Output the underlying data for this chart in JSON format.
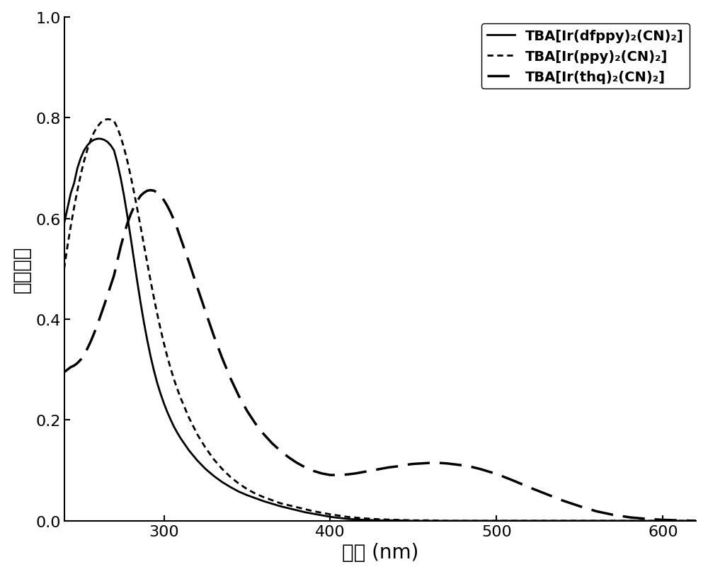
{
  "title": "",
  "xlabel": "波长 (nm)",
  "ylabel": "吸收强度",
  "xlim": [
    240,
    620
  ],
  "ylim": [
    0.0,
    1.0
  ],
  "xticks": [
    300,
    400,
    500,
    600
  ],
  "yticks": [
    0.0,
    0.2,
    0.4,
    0.6,
    0.8,
    1.0
  ],
  "legend_labels": [
    "TBA[Ir(dfppy)₂(CN)₂]",
    "TBA[Ir(ppy)₂(CN)₂]",
    "TBA[Ir(thq)₂(CN)₂]"
  ],
  "line_colors": [
    "#000000",
    "#000000",
    "#000000"
  ],
  "background_color": "#ffffff",
  "curve1_x": [
    240,
    242,
    244,
    246,
    248,
    250,
    252,
    254,
    256,
    258,
    260,
    262,
    264,
    266,
    268,
    270,
    272,
    274,
    276,
    278,
    280,
    282,
    284,
    286,
    288,
    290,
    292,
    294,
    296,
    298,
    300,
    302,
    304,
    306,
    308,
    310,
    315,
    320,
    325,
    330,
    335,
    340,
    345,
    350,
    355,
    360,
    365,
    370,
    375,
    380,
    385,
    390,
    395,
    400,
    410,
    420,
    430,
    440,
    450,
    460,
    470,
    480,
    490,
    500,
    520,
    540,
    560,
    580,
    600,
    620
  ],
  "curve1_y": [
    0.59,
    0.62,
    0.65,
    0.67,
    0.7,
    0.72,
    0.735,
    0.745,
    0.752,
    0.756,
    0.758,
    0.758,
    0.756,
    0.752,
    0.745,
    0.735,
    0.71,
    0.68,
    0.645,
    0.605,
    0.562,
    0.518,
    0.474,
    0.432,
    0.393,
    0.358,
    0.326,
    0.298,
    0.273,
    0.252,
    0.233,
    0.216,
    0.201,
    0.187,
    0.175,
    0.164,
    0.14,
    0.12,
    0.103,
    0.089,
    0.077,
    0.067,
    0.058,
    0.051,
    0.045,
    0.039,
    0.034,
    0.029,
    0.025,
    0.021,
    0.017,
    0.014,
    0.011,
    0.008,
    0.004,
    0.002,
    0.001,
    0.001,
    0.0,
    0.0,
    0.0,
    0.0,
    0.0,
    0.0,
    0.0,
    0.0,
    0.0,
    0.0,
    0.0,
    0.0
  ],
  "curve2_x": [
    240,
    242,
    244,
    246,
    248,
    250,
    252,
    254,
    256,
    258,
    260,
    262,
    264,
    266,
    268,
    270,
    272,
    274,
    276,
    278,
    280,
    282,
    284,
    286,
    288,
    290,
    292,
    294,
    296,
    298,
    300,
    302,
    304,
    306,
    308,
    310,
    315,
    320,
    325,
    330,
    335,
    340,
    345,
    350,
    355,
    360,
    365,
    370,
    375,
    380,
    385,
    390,
    395,
    400,
    410,
    420,
    430,
    440,
    450,
    460,
    470,
    480,
    490,
    500,
    520,
    540,
    560,
    580,
    600,
    620
  ],
  "curve2_y": [
    0.5,
    0.545,
    0.585,
    0.622,
    0.656,
    0.687,
    0.714,
    0.737,
    0.756,
    0.771,
    0.782,
    0.79,
    0.795,
    0.797,
    0.796,
    0.793,
    0.78,
    0.762,
    0.74,
    0.714,
    0.684,
    0.652,
    0.618,
    0.583,
    0.547,
    0.511,
    0.476,
    0.442,
    0.41,
    0.38,
    0.352,
    0.326,
    0.303,
    0.281,
    0.262,
    0.244,
    0.205,
    0.172,
    0.145,
    0.122,
    0.103,
    0.087,
    0.074,
    0.063,
    0.054,
    0.047,
    0.041,
    0.035,
    0.031,
    0.027,
    0.023,
    0.019,
    0.016,
    0.013,
    0.008,
    0.005,
    0.003,
    0.002,
    0.001,
    0.001,
    0.0,
    0.0,
    0.0,
    0.0,
    0.0,
    0.0,
    0.0,
    0.0,
    0.0,
    0.0
  ],
  "curve3_x": [
    240,
    242,
    244,
    246,
    248,
    250,
    252,
    254,
    256,
    258,
    260,
    262,
    264,
    266,
    268,
    270,
    272,
    274,
    276,
    278,
    280,
    282,
    284,
    286,
    288,
    290,
    292,
    294,
    296,
    298,
    300,
    302,
    304,
    306,
    308,
    310,
    315,
    320,
    325,
    330,
    335,
    340,
    345,
    350,
    355,
    360,
    365,
    370,
    375,
    380,
    385,
    390,
    395,
    400,
    405,
    410,
    415,
    420,
    425,
    430,
    435,
    440,
    445,
    450,
    455,
    460,
    465,
    470,
    475,
    480,
    485,
    490,
    495,
    500,
    510,
    520,
    530,
    540,
    550,
    560,
    570,
    580,
    590,
    600,
    610,
    620
  ],
  "curve3_y": [
    0.295,
    0.3,
    0.305,
    0.308,
    0.313,
    0.32,
    0.33,
    0.342,
    0.356,
    0.372,
    0.389,
    0.408,
    0.427,
    0.447,
    0.467,
    0.487,
    0.516,
    0.544,
    0.568,
    0.59,
    0.608,
    0.623,
    0.635,
    0.645,
    0.651,
    0.655,
    0.656,
    0.655,
    0.651,
    0.645,
    0.636,
    0.625,
    0.612,
    0.597,
    0.58,
    0.561,
    0.514,
    0.464,
    0.415,
    0.367,
    0.323,
    0.283,
    0.248,
    0.218,
    0.193,
    0.172,
    0.154,
    0.139,
    0.126,
    0.115,
    0.106,
    0.099,
    0.094,
    0.091,
    0.091,
    0.092,
    0.094,
    0.097,
    0.1,
    0.103,
    0.106,
    0.108,
    0.111,
    0.113,
    0.114,
    0.115,
    0.115,
    0.114,
    0.112,
    0.11,
    0.107,
    0.103,
    0.098,
    0.093,
    0.08,
    0.066,
    0.053,
    0.04,
    0.029,
    0.019,
    0.012,
    0.007,
    0.004,
    0.002,
    0.001,
    0.0
  ],
  "font_size_labels": 20,
  "font_size_ticks": 16,
  "font_size_legend": 14
}
